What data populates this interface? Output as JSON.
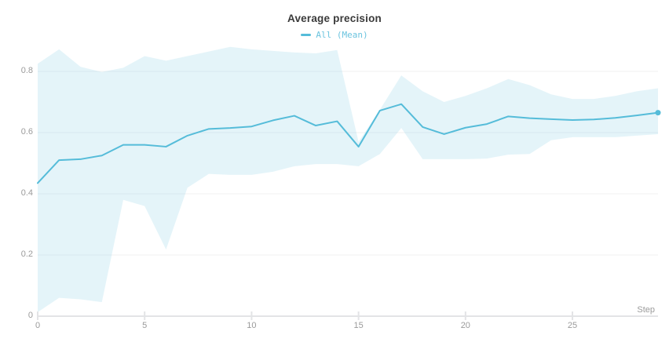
{
  "title": "Average precision",
  "legend": {
    "label": "All (Mean)",
    "swatch_color": "#55bcd9",
    "text_color": "#6cc4df"
  },
  "axes": {
    "x_label": "Step",
    "x_ticks": [
      0,
      5,
      10,
      15,
      20,
      25
    ],
    "y_ticks": [
      "0",
      "0.2",
      "0.4",
      "0.6",
      "0.8"
    ]
  },
  "colors": {
    "line": "#55bcd9",
    "band": "rgba(85,188,217,0.16)",
    "grid": "#f0f1f2",
    "axis": "#e3e4e6",
    "tick_text": "#9b9b9b",
    "title_text": "#3a3a3a"
  },
  "chart_data": {
    "type": "line",
    "title": "Average precision",
    "xlabel": "Step",
    "ylabel": "",
    "xlim": [
      0,
      29
    ],
    "ylim": [
      0,
      0.9
    ],
    "grid": true,
    "legend_position": "top",
    "x": [
      0,
      1,
      2,
      3,
      4,
      5,
      6,
      7,
      8,
      9,
      10,
      11,
      12,
      13,
      14,
      15,
      16,
      17,
      18,
      19,
      20,
      21,
      22,
      23,
      24,
      25,
      26,
      27,
      28,
      29
    ],
    "series": [
      {
        "name": "All (Mean)",
        "values": [
          0.435,
          0.51,
          0.513,
          0.525,
          0.56,
          0.56,
          0.554,
          0.59,
          0.612,
          0.615,
          0.62,
          0.64,
          0.655,
          0.623,
          0.637,
          0.554,
          0.672,
          0.693,
          0.618,
          0.595,
          0.616,
          0.628,
          0.653,
          0.647,
          0.644,
          0.641,
          0.643,
          0.648,
          0.656,
          0.665
        ],
        "marker_on_last_point": true
      },
      {
        "name": "band-upper",
        "values": [
          0.825,
          0.872,
          0.815,
          0.798,
          0.812,
          0.85,
          0.835,
          0.85,
          0.865,
          0.88,
          0.872,
          0.867,
          0.862,
          0.859,
          0.87,
          0.57,
          0.675,
          0.787,
          0.735,
          0.7,
          0.72,
          0.745,
          0.775,
          0.755,
          0.725,
          0.71,
          0.71,
          0.72,
          0.735,
          0.745
        ]
      },
      {
        "name": "band-lower",
        "values": [
          0.013,
          0.06,
          0.055,
          0.046,
          0.38,
          0.36,
          0.218,
          0.42,
          0.465,
          0.462,
          0.462,
          0.472,
          0.49,
          0.497,
          0.497,
          0.49,
          0.53,
          0.615,
          0.513,
          0.513,
          0.513,
          0.515,
          0.528,
          0.53,
          0.575,
          0.585,
          0.585,
          0.585,
          0.59,
          0.595
        ]
      }
    ]
  }
}
